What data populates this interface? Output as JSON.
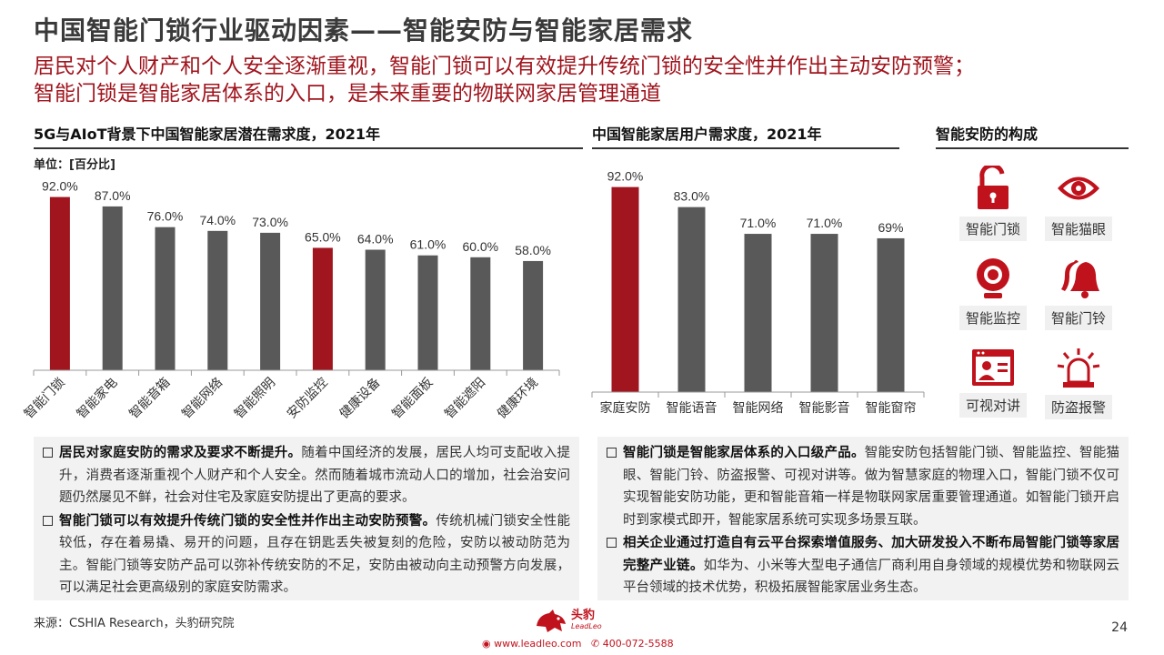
{
  "header": {
    "title": "中国智能门锁行业驱动因素——智能安防与智能家居需求",
    "subtitle_line1": "居民对个人财产和个人安全逐渐重视，智能门锁可以有效提升传统门锁的安全性并作出主动安防预警；",
    "subtitle_line2": "智能门锁是智能家居体系的入口，是未来重要的物联网家居管理通道"
  },
  "left_chart": {
    "section_title": "5G与AIoT背景下中国智能家居潜在需求度，2021年",
    "unit": "单位：[百分比]"
  },
  "mid_chart": {
    "section_title": "中国智能家居用户需求度，2021年"
  },
  "security": {
    "section_title": "智能安防的构成",
    "items": [
      {
        "icon": "padlock-icon",
        "label": "智能门锁"
      },
      {
        "icon": "eye-icon",
        "label": "智能猫眼"
      },
      {
        "icon": "webcam-icon",
        "label": "智能监控"
      },
      {
        "icon": "bell-icon",
        "label": "智能门铃"
      },
      {
        "icon": "video-intercom-icon",
        "label": "可视对讲"
      },
      {
        "icon": "alarm-light-icon",
        "label": "防盗报警"
      }
    ]
  },
  "left_text": {
    "p1_bold": "居民对家庭安防的需求及要求不断提升。",
    "p1_text": "随着中国经济的发展，居民人均可支配收入提升，消费者逐渐重视个人财产和个人安全。然而随着城市流动人口的增加，社会治安问题仍然屡见不鲜，社会对住宅及家庭安防提出了更高的要求。",
    "p2_bold": "智能门锁可以有效提升传统门锁的安全性并作出主动安防预警。",
    "p2_text": "传统机械门锁安全性能较低，存在着易撬、易开的问题，且存在钥匙丢失被复刻的危险，安防以被动防范为主。智能门锁等安防产品可以弥补传统安防的不足，安防由被动向主动预警方向发展，可以满足社会更高级别的家庭安防需求。"
  },
  "right_text": {
    "p1_bold": "智能门锁是智能家居体系的入口级产品。",
    "p1_text": "智能安防包括智能门锁、智能监控、智能猫眼、智能门铃、防盗报警、可视对讲等。做为智慧家庭的物理入口，智能门锁不仅可实现智能安防功能，更和智能音箱一样是物联网家居重要管理通道。如智能门锁开启时到家模式即开，智能家居系统可实现多场景互联。",
    "p2_bold": "相关企业通过打造自有云平台探索增值服务、加大研发投入不断布局智能门锁等家居完整产业链。",
    "p2_text": "如华为、小米等大型电子通信厂商利用自身领域的规模优势和物联网云平台领域的技术优势，积极拓展智能家居业务生态。"
  },
  "footer": {
    "source": "来源：CSHIA Research，头豹研究院",
    "page_number": "24",
    "logo_cn": "头豹",
    "logo_en": "LeadLeo",
    "website": "www.leadleo.com",
    "phone": "400-072-5588"
  },
  "colors": {
    "accent_red": "#a0151e",
    "bar_gray": "#595959",
    "bar_highlight": "#a0151e"
  },
  "chart_data": [
    {
      "type": "bar",
      "title": "5G与AIoT背景下中国智能家居潜在需求度，2021年",
      "categories": [
        "智能门锁",
        "智能家电",
        "智能音箱",
        "智能网络",
        "智能照明",
        "安防监控",
        "健康设备",
        "智能面板",
        "智能遮阳",
        "健康环境"
      ],
      "values": [
        92.0,
        87.0,
        76.0,
        74.0,
        73.0,
        65.0,
        64.0,
        61.0,
        60.0,
        58.0
      ],
      "value_labels": [
        "92.0%",
        "87.0%",
        "76.0%",
        "74.0%",
        "73.0%",
        "65.0%",
        "64.0%",
        "61.0%",
        "60.0%",
        "58.0%"
      ],
      "highlight_indices": [
        0,
        5
      ],
      "ylabel": "",
      "ylim": [
        0,
        100
      ],
      "grid": false,
      "category_label_rotation": "diagonal"
    },
    {
      "type": "bar",
      "title": "中国智能家居用户需求度，2021年",
      "categories": [
        "家庭安防",
        "智能语音",
        "智能网络",
        "智能影音",
        "智能窗帘"
      ],
      "values": [
        92.0,
        83.0,
        71.0,
        71.0,
        69.0
      ],
      "value_labels": [
        "92.0%",
        "83.0%",
        "71.0%",
        "71.0%",
        "69%"
      ],
      "highlight_indices": [
        0
      ],
      "ylabel": "",
      "ylim": [
        0,
        100
      ],
      "grid": false,
      "category_label_rotation": "horizontal"
    }
  ]
}
